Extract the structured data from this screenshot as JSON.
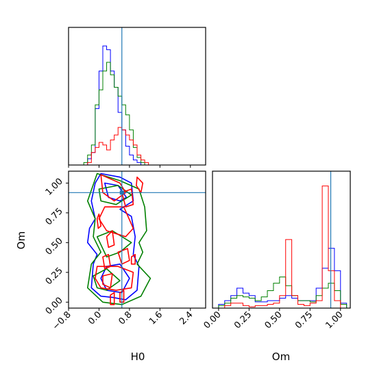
{
  "chart_data": {
    "type": "corner",
    "parameters": [
      "H0",
      "Om"
    ],
    "truths": {
      "H0": 0.6,
      "Om": 0.92
    },
    "series": [
      {
        "color": "#0000ff"
      },
      {
        "color": "#008000"
      },
      {
        "color": "#ff0000"
      }
    ],
    "truth_color": "#1f77b4",
    "panels": {
      "h0_hist": {
        "xlim": [
          -0.8,
          2.8
        ],
        "bin_edges": [
          -0.4,
          -0.3,
          -0.2,
          -0.1,
          0.0,
          0.1,
          0.2,
          0.3,
          0.4,
          0.5,
          0.6,
          0.7,
          0.8,
          0.9,
          1.0,
          1.1,
          1.2,
          1.3
        ],
        "counts": {
          "blue": [
            0,
            0.05,
            0.1,
            0.45,
            0.75,
            0.95,
            0.92,
            0.75,
            0.62,
            0.42,
            0.28,
            0.15,
            0.08,
            0.04,
            0.02,
            0.0,
            0.0
          ],
          "green": [
            0.02,
            0.08,
            0.16,
            0.48,
            0.6,
            0.75,
            0.82,
            0.72,
            0.62,
            0.55,
            0.48,
            0.4,
            0.28,
            0.14,
            0.06,
            0.02,
            0.0
          ],
          "red": [
            0.0,
            0.02,
            0.1,
            0.14,
            0.18,
            0.16,
            0.12,
            0.2,
            0.24,
            0.3,
            0.28,
            0.24,
            0.2,
            0.16,
            0.08,
            0.04,
            0.02
          ]
        }
      },
      "joint": {
        "xlim": [
          -0.8,
          2.8
        ],
        "ylim": [
          -0.05,
          1.1
        ],
        "xticks": [
          "−0.8",
          "0.0",
          "0.8",
          "1.6",
          "2.4"
        ],
        "xtick_values": [
          -0.8,
          0.0,
          0.8,
          1.6,
          2.4
        ],
        "yticks": [
          "0.00",
          "0.25",
          "0.50",
          "0.75",
          "1.00"
        ],
        "ytick_values": [
          0.0,
          0.25,
          0.5,
          0.75,
          1.0
        ]
      },
      "om_hist": {
        "xlim": [
          -0.05,
          1.08
        ],
        "xticks": [
          "0.00",
          "0.25",
          "0.50",
          "0.75",
          "1.00"
        ],
        "xtick_values": [
          0.0,
          0.25,
          0.5,
          0.75,
          1.0
        ],
        "bin_edges": [
          0.0,
          0.05,
          0.1,
          0.15,
          0.2,
          0.25,
          0.3,
          0.35,
          0.4,
          0.45,
          0.5,
          0.55,
          0.6,
          0.65,
          0.7,
          0.75,
          0.8,
          0.85,
          0.9,
          0.95,
          1.0,
          1.05
        ],
        "counts": {
          "blue": [
            0.03,
            0.06,
            0.1,
            0.16,
            0.12,
            0.1,
            0.05,
            0.05,
            0.06,
            0.06,
            0.08,
            0.1,
            0.08,
            0.06,
            0.06,
            0.06,
            0.16,
            0.32,
            0.48,
            0.3,
            0.04
          ],
          "green": [
            0.02,
            0.04,
            0.08,
            0.1,
            0.09,
            0.08,
            0.06,
            0.09,
            0.14,
            0.2,
            0.25,
            0.18,
            0.1,
            0.06,
            0.06,
            0.05,
            0.1,
            0.16,
            0.2,
            0.14,
            0.03
          ],
          "red": [
            0.0,
            0.02,
            0.04,
            0.04,
            0.02,
            0.01,
            0.02,
            0.02,
            0.03,
            0.04,
            0.1,
            0.55,
            0.1,
            0.03,
            0.02,
            0.04,
            0.06,
            0.98,
            0.3,
            0.06,
            0.0
          ]
        }
      }
    },
    "xlabels": {
      "h0": "H0",
      "om": "Om"
    },
    "ylabel": "Om"
  }
}
